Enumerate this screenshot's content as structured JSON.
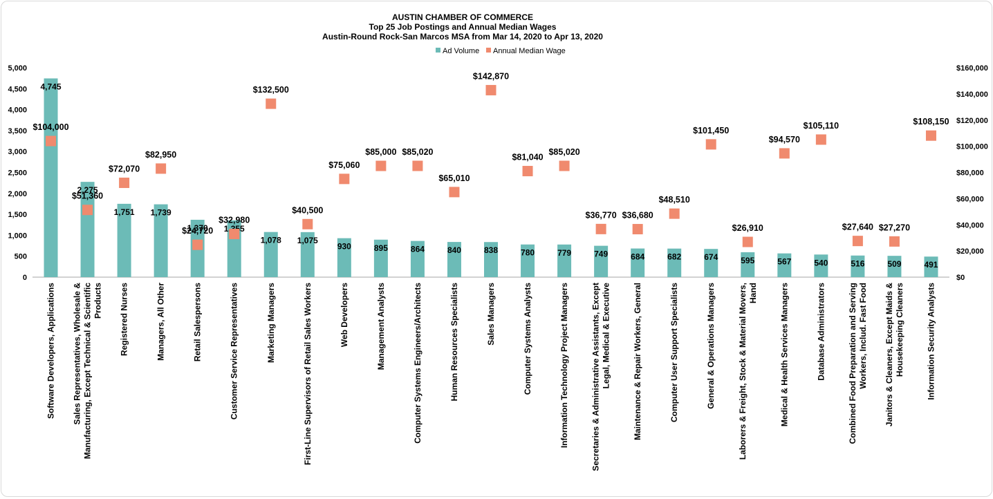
{
  "chart_data": {
    "type": "bar",
    "title": "AUSTIN CHAMBER  OF COMMERCE",
    "subtitle_1": "Top 25 Job Postings and Annual Median Wages",
    "subtitle_2": "Austin-Round  Rock-San Marcos MSA from Mar 14, 2020 to Apr 13, 2020",
    "legend_position": "top",
    "grid": false,
    "categories": [
      "Software Developers, Applications",
      "Sales Representatives, Wholesale & Manufacturing, Except Technical & Scientific Products",
      "Registered Nurses",
      "Managers, All Other",
      "Retail Salespersons",
      "Customer Service Representatives",
      "Marketing Managers",
      "First-Line Supervisors of Retail Sales Workers",
      "Web Developers",
      "Management Analysts",
      "Computer Systems Engineers/Architects",
      "Human Resources Specialists",
      "Sales Managers",
      "Computer Systems Analysts",
      "Information Technology Project Managers",
      "Secretaries & Administrative Assistants, Except Legal, Medical & Executive",
      "Maintenance & Repair Workers, General",
      "Computer User Support Specialists",
      "General & Operations Managers",
      "Laborers & Freight, Stock & Material Movers, Hand",
      "Medical & Health Services Managers",
      "Database Administrators",
      "Combined Food Preparation and Serving Workers, Includ. Fast Food",
      "Janitors & Cleaners, Except Maids & Housekeeping Cleaners",
      "Information Security Analysts"
    ],
    "category_lines": [
      [
        "Software Developers, Applications"
      ],
      [
        "Sales Representatives, Wholesale &",
        "Manufacturing, Except Technical & Scientific",
        "Products"
      ],
      [
        "Registered Nurses"
      ],
      [
        "Managers, All Other"
      ],
      [
        "Retail Salespersons"
      ],
      [
        "Customer Service Representatives"
      ],
      [
        "Marketing Managers"
      ],
      [
        "First-Line Supervisors of Retail Sales Workers"
      ],
      [
        "Web Developers"
      ],
      [
        "Management Analysts"
      ],
      [
        "Computer Systems Engineers/Architects"
      ],
      [
        "Human Resources Specialists"
      ],
      [
        "Sales Managers"
      ],
      [
        "Computer Systems Analysts"
      ],
      [
        "Information Technology Project Managers"
      ],
      [
        "Secretaries & Administrative Assistants, Except",
        "Legal, Medical & Executive"
      ],
      [
        "Maintenance & Repair Workers, General"
      ],
      [
        "Computer User Support Specialists"
      ],
      [
        "General & Operations Managers"
      ],
      [
        "Laborers & Freight, Stock & Material Movers,",
        "Hand"
      ],
      [
        "Medical & Health Services Managers"
      ],
      [
        "Database Administrators"
      ],
      [
        "Combined Food Preparation and Serving",
        "Workers, Includ. Fast Food"
      ],
      [
        "Janitors & Cleaners, Except Maids &",
        "Housekeeping Cleaners"
      ],
      [
        "Information Security Analysts"
      ]
    ],
    "series": [
      {
        "name": "Ad Volume",
        "kind": "bar",
        "axis": "left",
        "color": "#6cbbb7",
        "values": [
          4745,
          2275,
          1751,
          1739,
          1370,
          1355,
          1078,
          1075,
          930,
          895,
          864,
          840,
          838,
          780,
          779,
          749,
          684,
          682,
          674,
          595,
          567,
          540,
          516,
          509,
          491
        ],
        "labels": [
          "4,745",
          "2,275",
          "1,751",
          "1,739",
          "1,370",
          "1,355",
          "1,078",
          "1,075",
          "930",
          "895",
          "864",
          "840",
          "838",
          "780",
          "779",
          "749",
          "684",
          "682",
          "674",
          "595",
          "567",
          "540",
          "516",
          "509",
          "491"
        ]
      },
      {
        "name": "Annual Median Wage",
        "kind": "marker",
        "axis": "right",
        "color": "#f08a6e",
        "values": [
          104000,
          51360,
          72070,
          82950,
          24720,
          32980,
          132500,
          40500,
          75060,
          85000,
          85020,
          65010,
          142870,
          81040,
          85020,
          36770,
          36680,
          48510,
          101450,
          26910,
          94570,
          105110,
          27640,
          27270,
          108150
        ],
        "labels": [
          "$104,000",
          "$51,360",
          "$72,070",
          "$82,950",
          "$24,720",
          "$32,980",
          "$132,500",
          "$40,500",
          "$75,060",
          "$85,000",
          "$85,020",
          "$65,010",
          "$142,870",
          "$81,040",
          "$85,020",
          "$36,770",
          "$36,680",
          "$48,510",
          "$101,450",
          "$26,910",
          "$94,570",
          "$105,110",
          "$27,640",
          "$27,270",
          "$108,150"
        ]
      }
    ],
    "left_axis": {
      "ylim": [
        0,
        5000
      ],
      "ticks": [
        0,
        500,
        1000,
        1500,
        2000,
        2500,
        3000,
        3500,
        4000,
        4500,
        5000
      ],
      "tick_labels": [
        "0",
        "500",
        "1,000",
        "1,500",
        "2,000",
        "2,500",
        "3,000",
        "3,500",
        "4,000",
        "4,500",
        "5,000"
      ]
    },
    "right_axis": {
      "ylim": [
        0,
        160000
      ],
      "ticks": [
        0,
        20000,
        40000,
        60000,
        80000,
        100000,
        120000,
        140000,
        160000
      ],
      "tick_labels": [
        "$0",
        "$20,000",
        "$40,000",
        "$60,000",
        "$80,000",
        "$100,000",
        "$120,000",
        "$140,000",
        "$160,000"
      ]
    }
  }
}
